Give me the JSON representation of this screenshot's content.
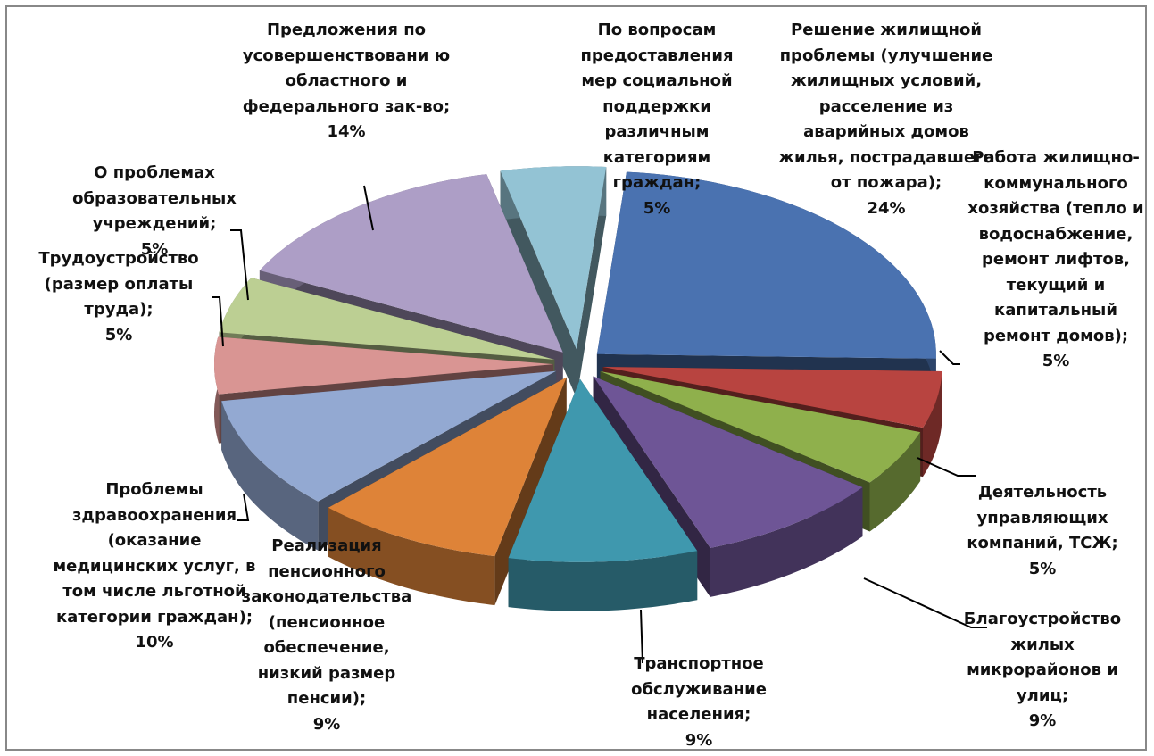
{
  "chart_data": {
    "type": "pie3d",
    "categories": [
      "Решение жилищной проблемы (улучшение жилищных условий, расселение из аварийных домов жилья, пострадавшего от пожара);",
      "Работа жилищно-коммунального хозяйства (тепло и водоснабжение, ремонт лифтов, текущий и капитальный ремонт домов);",
      "Деятельность управляющих компаний, ТСЖ;",
      "Благоустройство жилых микрорайонов и улиц;",
      "Транспортное обслуживание населения;",
      "Реализация пенсионного законодательства (пенсионное обеспечение, низкий размер пенсии);",
      "Проблемы здравоохранения (оказание медицинских услуг, в том числе льготной категории граждан);",
      "Трудоустройство (размер оплаты труда);",
      "О проблемах образовательных учреждений;",
      "Предложения по усовершенствовани ю областного и федерального зак-во;",
      "По вопросам предоставления мер социальной поддержки различным категориям граждан;"
    ],
    "values": [
      24,
      5,
      5,
      9,
      9,
      9,
      10,
      5,
      5,
      14,
      5
    ],
    "value_labels": [
      "24%",
      "5%",
      "5%",
      "9%",
      "9%",
      "9%",
      "10%",
      "5%",
      "5%",
      "14%",
      "5%"
    ],
    "colors": [
      "#4a72b0",
      "#b84440",
      "#8fb04c",
      "#6e5596",
      "#3f98ae",
      "#de8338",
      "#93a9d2",
      "#d99593",
      "#bccf93",
      "#ad9ec6",
      "#93c3d4"
    ]
  }
}
